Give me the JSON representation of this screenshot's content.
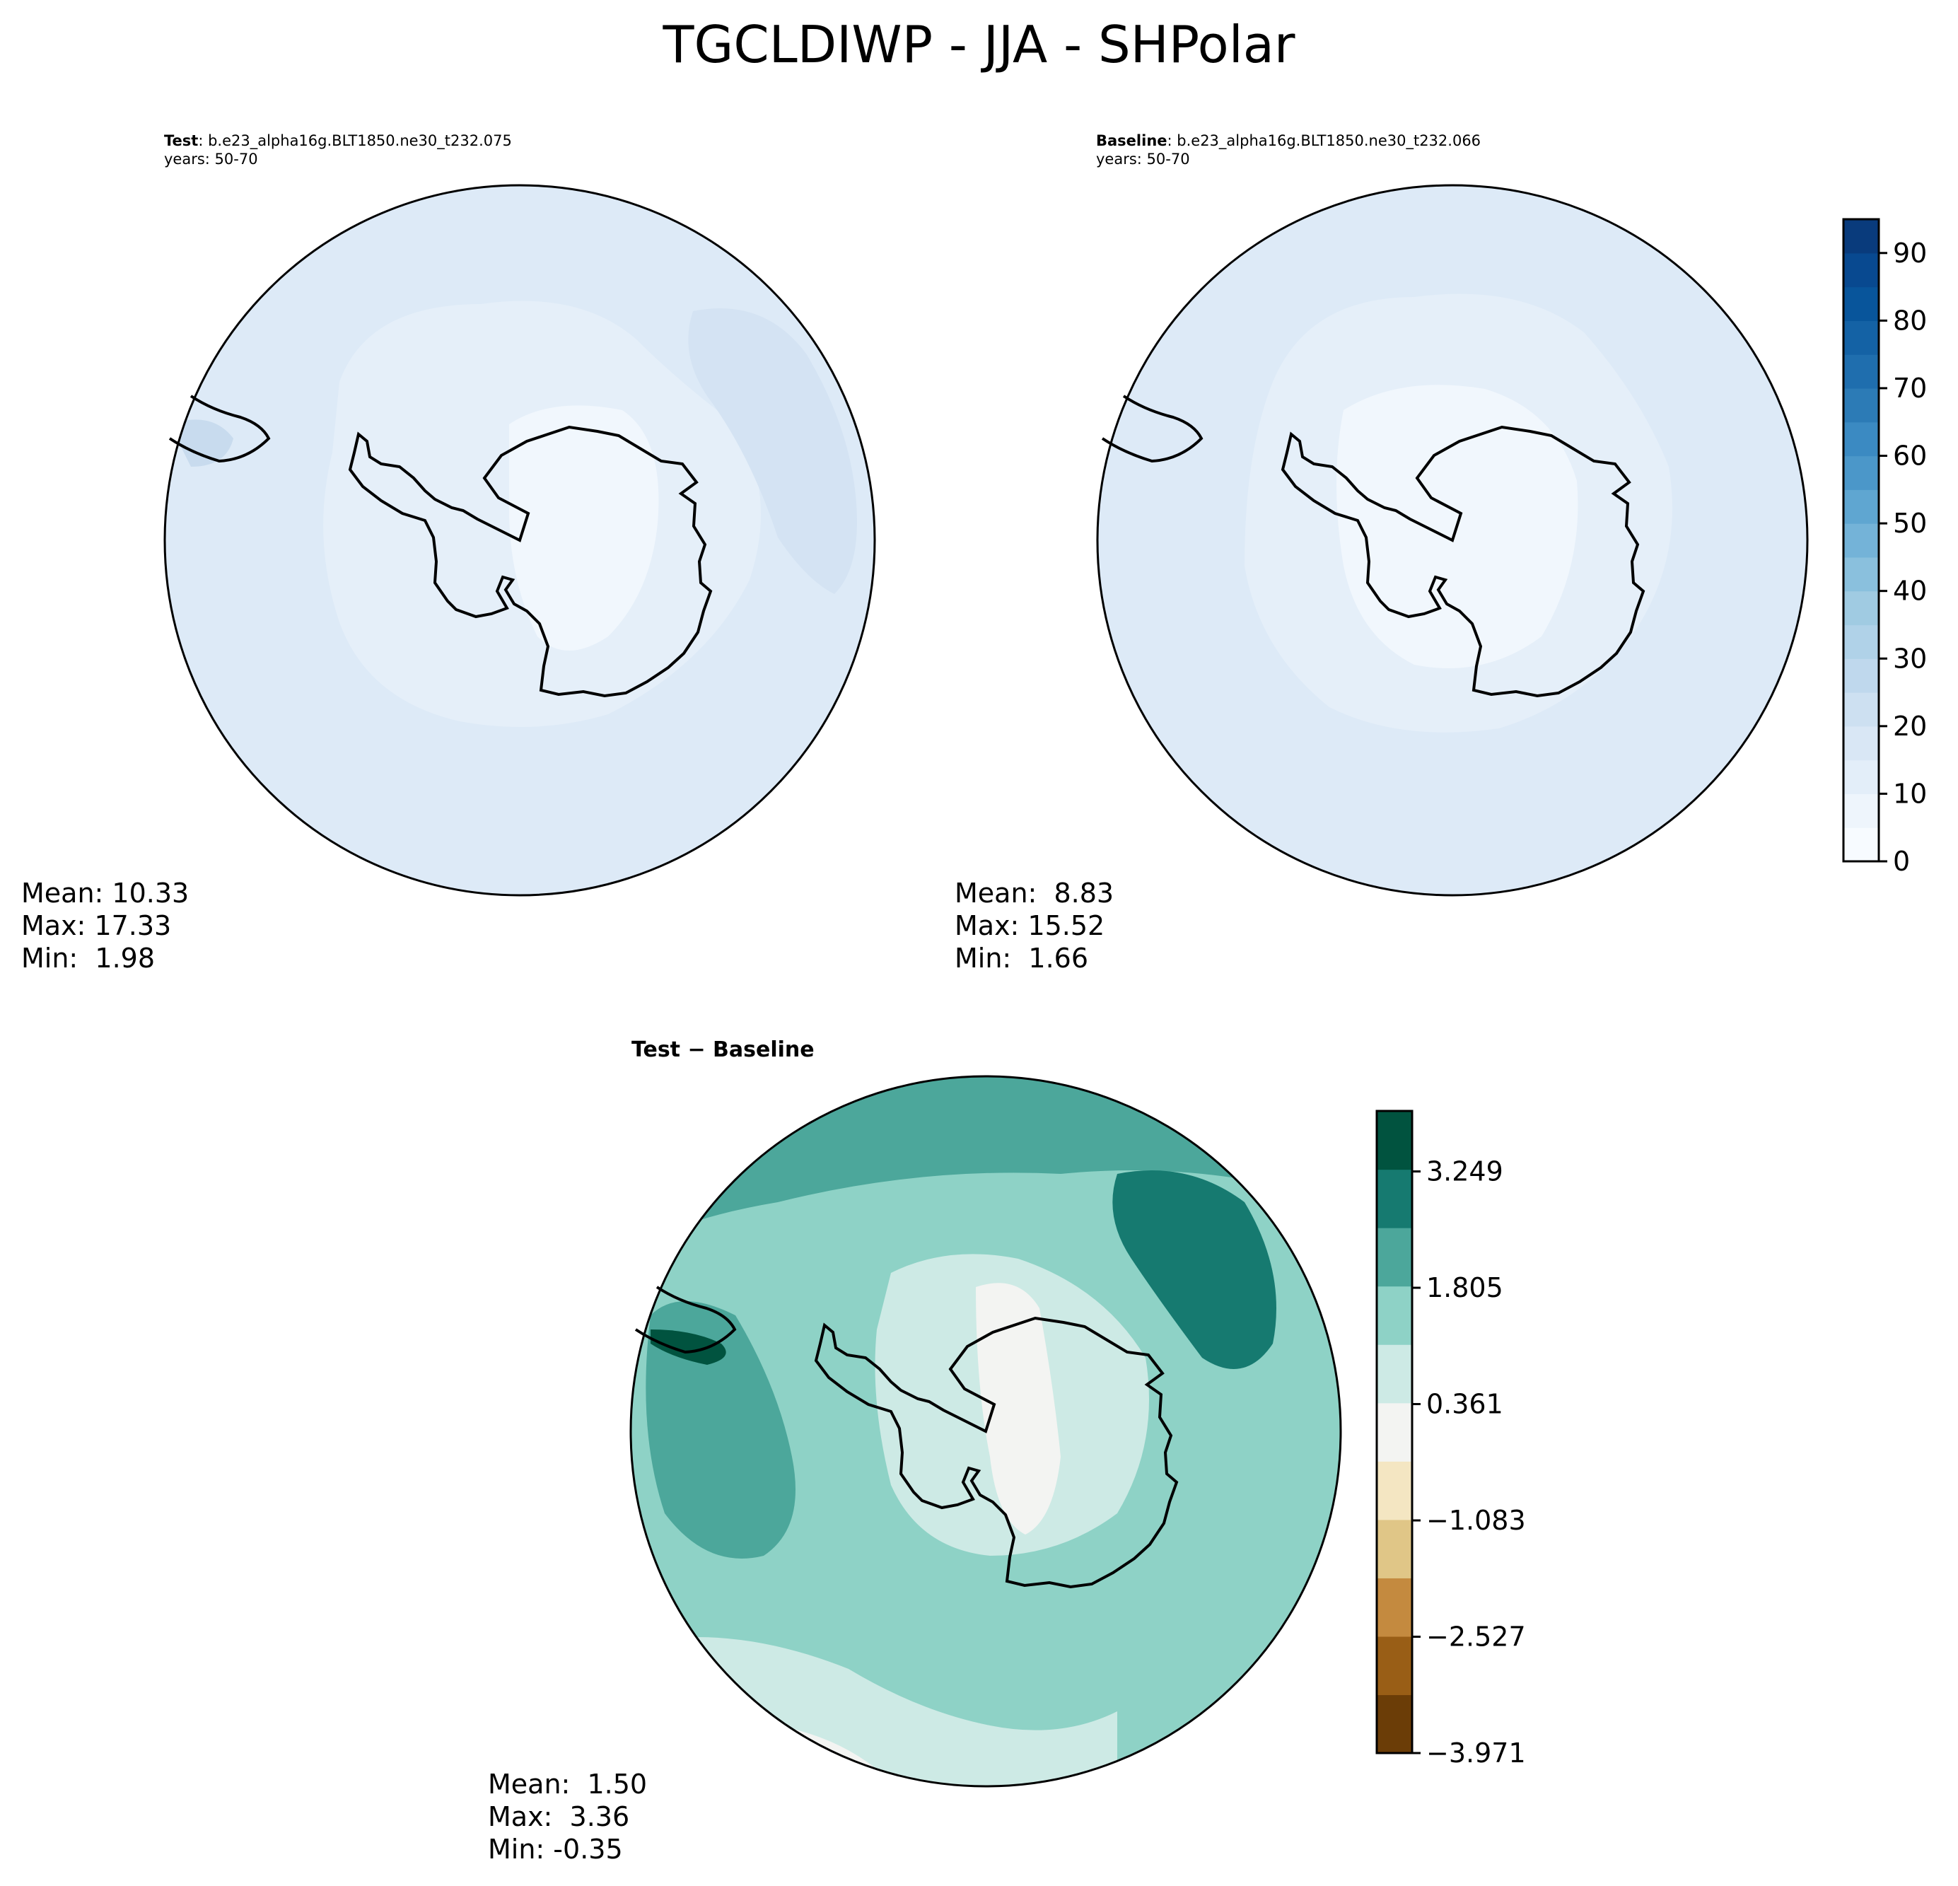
{
  "figure": {
    "title": "TGCLDIWP - JJA - SHPolar"
  },
  "panels": {
    "test": {
      "label": "Test",
      "case": ": b.e23_alpha16g.BLT1850.ne30_t232.075",
      "years": "years: 50-70",
      "mean": "Mean: 10.33",
      "max": "Max: 17.33",
      "min": "Min:  1.98"
    },
    "baseline": {
      "label": "Baseline",
      "case": ": b.e23_alpha16g.BLT1850.ne30_t232.066",
      "years": "years: 50-70",
      "mean": "Mean:  8.83",
      "max": "Max: 15.52",
      "min": "Min:  1.66"
    },
    "difference": {
      "title": "Test − Baseline",
      "mean": "Mean:  1.50",
      "max": "Max:  3.36",
      "min": "Min: -0.35"
    }
  },
  "colorbars": {
    "main": {
      "colormap": "Blues",
      "range": [
        0,
        95
      ],
      "step": 5,
      "tick_labels": [
        "0",
        "10",
        "20",
        "30",
        "40",
        "50",
        "60",
        "70",
        "80",
        "90"
      ],
      "colors": [
        "#f7fbff",
        "#eef5fc",
        "#e3eef9",
        "#d9e7f5",
        "#cde0f1",
        "#bfd8ed",
        "#b0d2e8",
        "#a0cbe2",
        "#8ac0dd",
        "#74b3d8",
        "#5fa6d1",
        "#4b97c9",
        "#3b8ac2",
        "#2c7bb6",
        "#1f6eae",
        "#1462a5",
        "#08559b",
        "#084990",
        "#093b7c"
      ]
    },
    "diff": {
      "colormap": "BrBG",
      "range": [
        -3.971,
        4.0
      ],
      "tick_labels": [
        "−3.971",
        "−2.527",
        "−1.083",
        "0.361",
        "1.805",
        "3.249"
      ],
      "colors": [
        "#6b3d07",
        "#995e16",
        "#c48a3f",
        "#e0c687",
        "#f4e6c2",
        "#f3f4f2",
        "#cdeae5",
        "#8ed2c6",
        "#4ca79b",
        "#167a70",
        "#01533f"
      ]
    }
  }
}
